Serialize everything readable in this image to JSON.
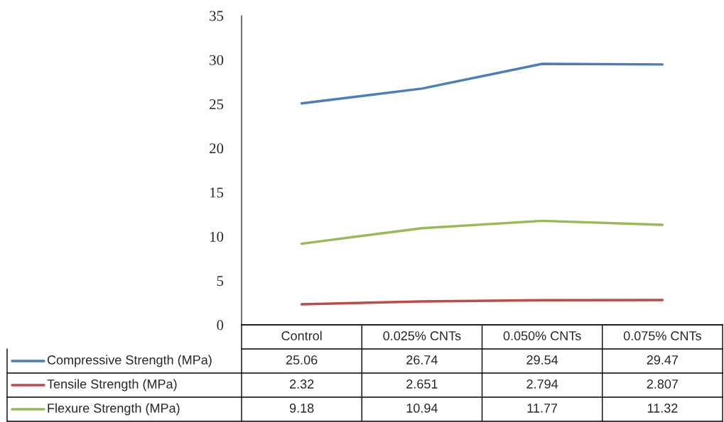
{
  "chart_data": {
    "type": "line",
    "categories": [
      "Control",
      "0.025% CNTs",
      "0.050% CNTs",
      "0.075% CNTs"
    ],
    "series": [
      {
        "name": "Compressive Strength (MPa)",
        "color": "#4a7ebb",
        "values": [
          25.06,
          26.74,
          29.54,
          29.47
        ]
      },
      {
        "name": "Tensile Strength (MPa)",
        "color": "#be4b48",
        "values": [
          2.32,
          2.651,
          2.794,
          2.807
        ]
      },
      {
        "name": "Flexure Strength (MPa)",
        "color": "#98b954",
        "values": [
          9.18,
          10.94,
          11.77,
          11.32
        ]
      }
    ],
    "ylim": [
      0,
      35
    ],
    "yticks": [
      0,
      5,
      10,
      15,
      20,
      25,
      30,
      35
    ],
    "grid": false,
    "legend": "bottom",
    "data_labels": true,
    "marker": "none",
    "line_style": "solid"
  }
}
